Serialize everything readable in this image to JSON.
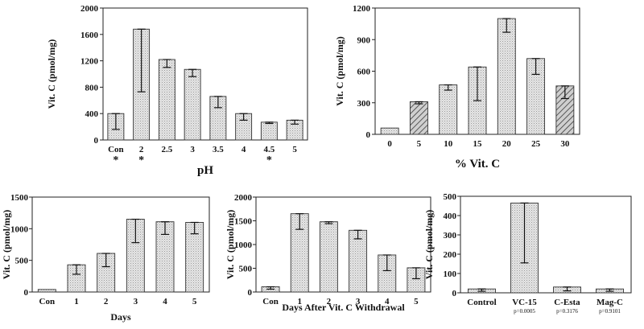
{
  "chart_data": [
    {
      "type": "bar",
      "categories": [
        "Con",
        "2",
        "2.5",
        "3",
        "3.5",
        "4",
        "4.5",
        "5"
      ],
      "values": [
        400,
        1680,
        1220,
        1070,
        660,
        400,
        270,
        300
      ],
      "errors_low": [
        160,
        730,
        1100,
        960,
        490,
        300,
        250,
        240
      ],
      "errors_high": [
        400,
        1680,
        1220,
        1070,
        660,
        400,
        270,
        300
      ],
      "markers": [
        "*",
        "*",
        "",
        "",
        "",
        "",
        "*",
        ""
      ],
      "xlabel": "pH",
      "ylabel": "Vit. C (pmol/mg)",
      "ylim": [
        0,
        2000
      ],
      "yticks": [
        0,
        400,
        800,
        1200,
        1600,
        2000
      ]
    },
    {
      "type": "bar",
      "categories": [
        "0",
        "5",
        "10",
        "15",
        "20",
        "25",
        "30"
      ],
      "values": [
        60,
        310,
        470,
        640,
        1100,
        720,
        460
      ],
      "errors_low": [
        60,
        290,
        420,
        320,
        970,
        570,
        340
      ],
      "errors_high": [
        60,
        310,
        470,
        640,
        1100,
        720,
        460
      ],
      "hatched": [
        false,
        true,
        false,
        false,
        false,
        false,
        true
      ],
      "xlabel": "% Vit. C",
      "ylabel": "Vit. C (pmol/mg)",
      "ylim": [
        0,
        1200
      ],
      "yticks": [
        0,
        300,
        600,
        900,
        1200
      ]
    },
    {
      "type": "bar",
      "categories": [
        "Con",
        "1",
        "2",
        "3",
        "4",
        "5"
      ],
      "values": [
        40,
        430,
        610,
        1150,
        1110,
        1100
      ],
      "errors_low": [
        40,
        280,
        400,
        780,
        910,
        920
      ],
      "errors_high": [
        40,
        430,
        610,
        1150,
        1110,
        1100
      ],
      "xlabel": "Days",
      "ylabel": "Vit. C (pmol/mg)",
      "ylim": [
        0,
        1500
      ],
      "yticks": [
        0,
        500,
        1000,
        1500
      ]
    },
    {
      "type": "bar",
      "categories": [
        "Con",
        "1",
        "2",
        "3",
        "4",
        "5"
      ],
      "values": [
        110,
        1650,
        1480,
        1300,
        780,
        510
      ],
      "errors_low": [
        60,
        1320,
        1440,
        1120,
        450,
        280
      ],
      "errors_high": [
        110,
        1650,
        1480,
        1300,
        780,
        510
      ],
      "xlabel": "Days After Vit. C Withdrawal",
      "ylabel": "Vit. C (pmol/mg)",
      "ylim": [
        0,
        2000
      ],
      "yticks": [
        0,
        500,
        1000,
        1500,
        2000
      ]
    },
    {
      "type": "bar",
      "categories": [
        "Control",
        "VC-15",
        "C-Esta",
        "Mag-C"
      ],
      "values": [
        20,
        465,
        30,
        20
      ],
      "errors_low": [
        8,
        155,
        10,
        8
      ],
      "errors_high": [
        20,
        465,
        30,
        20
      ],
      "pvalues": [
        "",
        "p=0.0005",
        "p=0.3176",
        "p=0.9101"
      ],
      "xlabel": "",
      "ylabel": "Vit. C (pmol/mg)",
      "ylim": [
        0,
        500
      ],
      "yticks": [
        0,
        100,
        200,
        300,
        400,
        500
      ]
    }
  ]
}
